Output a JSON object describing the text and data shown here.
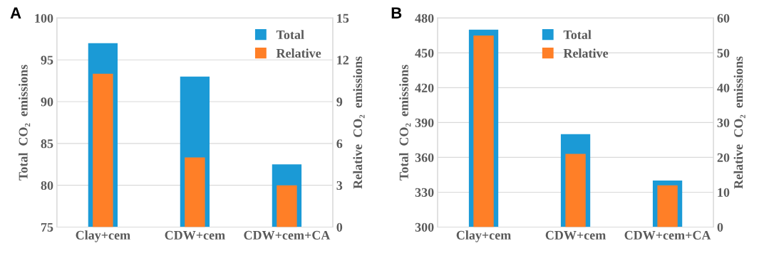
{
  "chart_data": [
    {
      "type": "bar",
      "title": "A",
      "categories": [
        "Clay+cem",
        "CDW+cem",
        "CDW+cem+CA"
      ],
      "ylabel": "Total  CO₂  emissions",
      "y2label": "Relative  CO₂  emissions",
      "series": [
        {
          "name": "Total",
          "color": "#1b9ad6",
          "values": [
            97,
            93,
            82.5
          ]
        },
        {
          "name": "Relative",
          "color": "#ff7f27",
          "values": [
            11,
            5,
            3
          ],
          "axis": "y2"
        }
      ],
      "ylim": [
        75,
        100
      ],
      "yticks": [
        75,
        80,
        85,
        90,
        95,
        100
      ],
      "y2lim": [
        0,
        15
      ],
      "y2ticks": [
        0,
        3,
        6,
        9,
        12,
        15
      ],
      "grid": "y",
      "legend": "top right"
    },
    {
      "type": "bar",
      "title": "B",
      "categories": [
        "Clay+cem",
        "CDW+cem",
        "CDW+cem+CA"
      ],
      "ylabel": "Total  CO₂  emissions",
      "y2label": "Relative  CO₂  emissions",
      "series": [
        {
          "name": "Total",
          "color": "#1b9ad6",
          "values": [
            470,
            380,
            340
          ]
        },
        {
          "name": "Relative",
          "color": "#ff7f27",
          "values": [
            55,
            21,
            12
          ],
          "axis": "y2"
        }
      ],
      "ylim": [
        300,
        480
      ],
      "yticks": [
        300,
        330,
        360,
        390,
        420,
        450,
        480
      ],
      "y2lim": [
        0,
        60
      ],
      "y2ticks": [
        0,
        10,
        20,
        30,
        40,
        50,
        60
      ],
      "grid": "y",
      "legend": "top"
    }
  ]
}
